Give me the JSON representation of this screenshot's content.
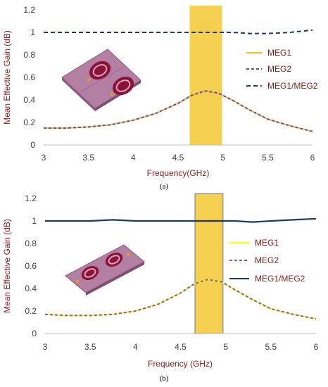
{
  "chart_data": [
    {
      "panel": "(a)",
      "type": "line",
      "xlabel": "Frequency(GHz)",
      "ylabel": "Mean Effective Gain (dB)",
      "xlim": [
        3,
        6
      ],
      "ylim": [
        0,
        1.2
      ],
      "xticks": [
        "3",
        "3.5",
        "4",
        "4.5",
        "5",
        "5.5",
        "6"
      ],
      "yticks": [
        "0",
        "0.2",
        "0.4",
        "0.6",
        "0.8",
        "1",
        "1.2"
      ],
      "grid": false,
      "legend_position": "right",
      "band": [
        4.63,
        4.99
      ],
      "x": [
        3.0,
        3.25,
        3.5,
        3.75,
        4.0,
        4.25,
        4.5,
        4.65,
        4.8,
        4.95,
        5.1,
        5.3,
        5.5,
        5.75,
        6.0
      ],
      "series": [
        {
          "name": "MEG1",
          "style": "solid",
          "color": "#f2c12e",
          "values": [
            0.15,
            0.15,
            0.16,
            0.18,
            0.22,
            0.28,
            0.37,
            0.44,
            0.48,
            0.46,
            0.4,
            0.31,
            0.23,
            0.17,
            0.12
          ]
        },
        {
          "name": "MEG2",
          "style": "dashed",
          "color": "#6b4c9a",
          "values": [
            0.15,
            0.15,
            0.16,
            0.18,
            0.22,
            0.28,
            0.37,
            0.44,
            0.48,
            0.46,
            0.4,
            0.31,
            0.23,
            0.17,
            0.12
          ]
        },
        {
          "name": "MEG1/MEG2",
          "style": "dashed",
          "color": "#1f3864",
          "values": [
            1.0,
            1.0,
            1.0,
            1.0,
            1.0,
            1.0,
            1.0,
            1.0,
            1.0,
            1.0,
            1.0,
            0.99,
            0.99,
            1.0,
            1.02
          ]
        }
      ]
    },
    {
      "panel": "(b)",
      "type": "line",
      "xlabel": "Frequency (GHz)",
      "ylabel": "Mean Effective Gain (dB)",
      "xlim": [
        3,
        6
      ],
      "ylim": [
        0,
        1.2
      ],
      "xticks": [
        "3",
        "3.5",
        "4",
        "4.5",
        "5",
        "5.5",
        "6"
      ],
      "yticks": [
        "0",
        "0.2",
        "0.4",
        "0.6",
        "0.8",
        "1",
        "1.2"
      ],
      "grid": false,
      "legend_position": "right",
      "band": [
        4.66,
        4.97
      ],
      "x": [
        3.0,
        3.25,
        3.5,
        3.75,
        4.0,
        4.25,
        4.5,
        4.65,
        4.8,
        4.95,
        5.1,
        5.3,
        5.5,
        5.75,
        6.0
      ],
      "series": [
        {
          "name": "MEG1",
          "style": "solid",
          "color": "#ffff00",
          "values": [
            0.17,
            0.16,
            0.16,
            0.17,
            0.2,
            0.26,
            0.36,
            0.44,
            0.48,
            0.46,
            0.39,
            0.3,
            0.22,
            0.17,
            0.13
          ]
        },
        {
          "name": "MEG2",
          "style": "dashed",
          "color": "#7b5ea7",
          "values": [
            0.17,
            0.16,
            0.16,
            0.17,
            0.2,
            0.26,
            0.36,
            0.44,
            0.48,
            0.46,
            0.39,
            0.3,
            0.22,
            0.17,
            0.13
          ]
        },
        {
          "name": "MEG1/MEG2",
          "style": "solid",
          "color": "#1f3864",
          "values": [
            1.0,
            1.0,
            1.0,
            1.01,
            1.0,
            1.0,
            1.0,
            1.0,
            1.0,
            1.0,
            1.0,
            0.99,
            1.0,
            1.01,
            1.02
          ]
        }
      ]
    }
  ]
}
